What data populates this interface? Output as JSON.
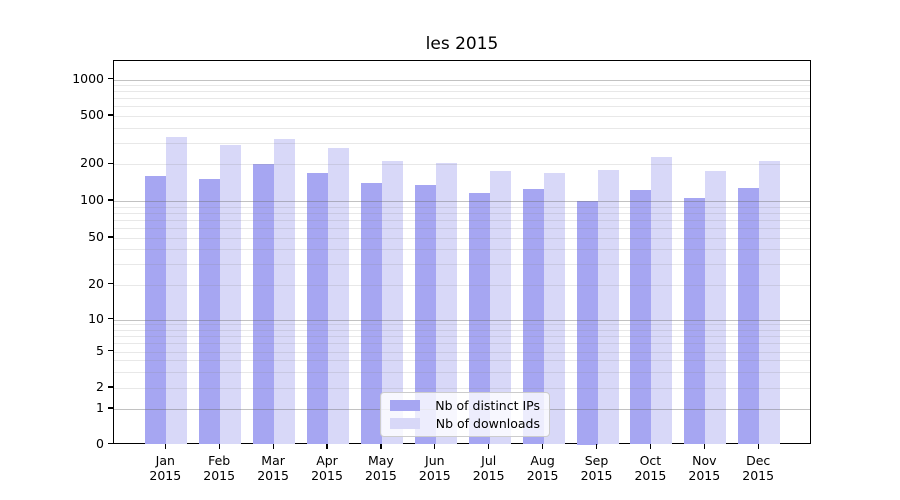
{
  "chart_data": {
    "type": "bar",
    "title": "les 2015",
    "categories": [
      "Jan 2015",
      "Feb 2015",
      "Mar 2015",
      "Apr 2015",
      "May 2015",
      "Jun 2015",
      "Jul 2015",
      "Aug 2015",
      "Sep 2015",
      "Oct 2015",
      "Nov 2015",
      "Dec 2015"
    ],
    "series": [
      {
        "name": "Nb of distinct IPs",
        "color": "#a6a6f2",
        "values": [
          160,
          151,
          201,
          170,
          141,
          135,
          117,
          125,
          100,
          124,
          106,
          127
        ]
      },
      {
        "name": "Nb of downloads",
        "color": "#d8d8f8",
        "values": [
          335,
          287,
          325,
          271,
          213,
          206,
          178,
          170,
          181,
          230,
          175,
          212
        ]
      }
    ],
    "xlabel": "",
    "ylabel": "",
    "yscale": "symlog",
    "y_ticks": [
      0,
      1,
      2,
      5,
      10,
      20,
      50,
      100,
      200,
      500,
      1000
    ],
    "y_minor_gridlines": [
      2,
      3,
      4,
      5,
      6,
      7,
      8,
      9,
      20,
      30,
      40,
      50,
      60,
      70,
      80,
      90,
      200,
      300,
      400,
      500,
      600,
      700,
      800,
      900
    ],
    "y_major_gridlines": [
      1,
      10,
      100,
      1000
    ],
    "ylim": [
      0,
      1400
    ],
    "grid": true,
    "legend_position": "lower center"
  }
}
